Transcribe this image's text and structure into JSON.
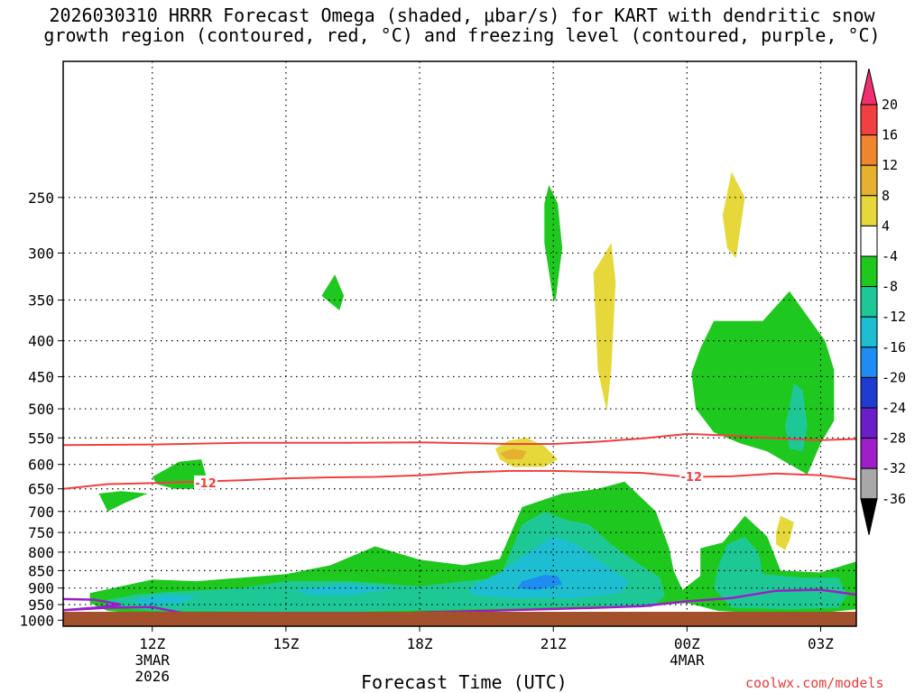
{
  "title": {
    "line1": "2026030310 HRRR Forecast Omega (shaded, μbar/s) for KART with dendritic snow",
    "line2": "growth region (contoured, red, °C) and freezing level (contoured, purple, °C)"
  },
  "xlabel": "Forecast Time (UTC)",
  "credit": "coolwx.com/models",
  "chart_data": {
    "type": "heatmap",
    "title": "2026030310 HRRR Forecast Omega (shaded, μbar/s) for KART with dendritic snow growth region (contoured, red, °C) and freezing level (contoured, purple, °C)",
    "xlabel": "Forecast Time (UTC)",
    "ylabel": "",
    "x_range_hours": [
      10,
      27.8
    ],
    "y_range_hpa": [
      1020,
      160
    ],
    "y_ticks": [
      250,
      300,
      350,
      400,
      450,
      500,
      550,
      600,
      650,
      700,
      750,
      800,
      850,
      900,
      950,
      1000
    ],
    "x_ticks": [
      {
        "hour": 12,
        "label": "12Z",
        "sub1": "3MAR",
        "sub2": "2026"
      },
      {
        "hour": 15,
        "label": "15Z",
        "sub1": "",
        "sub2": ""
      },
      {
        "hour": 18,
        "label": "18Z",
        "sub1": "",
        "sub2": ""
      },
      {
        "hour": 21,
        "label": "21Z",
        "sub1": "",
        "sub2": ""
      },
      {
        "hour": 24,
        "label": "00Z",
        "sub1": "4MAR",
        "sub2": ""
      },
      {
        "hour": 27,
        "label": "03Z",
        "sub1": "",
        "sub2": ""
      }
    ],
    "grid": true,
    "colorbar": {
      "labels": [
        "20",
        "16",
        "12",
        "8",
        "4",
        "-4",
        "-8",
        "-12",
        "-16",
        "-20",
        "-24",
        "-28",
        "-32",
        "-36"
      ],
      "colors": [
        "#f0306e",
        "#f04040",
        "#f08530",
        "#e6b030",
        "#e6d83a",
        "#ffffff",
        "#1ec81e",
        "#1ec896",
        "#1ebed2",
        "#1e8cf0",
        "#1e3cd2",
        "#6a1ec8",
        "#a01ec8",
        "#a8a8a8",
        "#000000"
      ]
    },
    "contours": {
      "dgz_label": "-12",
      "dgz_color": "#f04040",
      "freezing_color": "#9b1ec8"
    },
    "omega_regions": [
      {
        "level": "-4",
        "color": "#1ec81e",
        "points": [
          [
            10.6,
            915
          ],
          [
            11.3,
            895
          ],
          [
            12,
            875
          ],
          [
            13,
            880
          ],
          [
            14,
            870
          ],
          [
            15,
            860
          ],
          [
            16,
            835
          ],
          [
            17,
            785
          ],
          [
            18,
            820
          ],
          [
            19,
            835
          ],
          [
            19.8,
            818
          ],
          [
            20.3,
            690
          ],
          [
            21.2,
            660
          ],
          [
            22,
            650
          ],
          [
            22.6,
            635
          ],
          [
            23.3,
            700
          ],
          [
            23.6,
            790
          ],
          [
            23.7,
            850
          ],
          [
            23.9,
            905
          ],
          [
            24.3,
            865
          ],
          [
            24.3,
            790
          ],
          [
            24.8,
            775
          ],
          [
            25.3,
            710
          ],
          [
            25.8,
            760
          ],
          [
            26.1,
            850
          ],
          [
            27,
            855
          ],
          [
            27.8,
            825
          ],
          [
            27.8,
            965
          ],
          [
            27.1,
            975
          ],
          [
            26,
            980
          ],
          [
            24.7,
            970
          ],
          [
            24,
            945
          ],
          [
            23,
            955
          ],
          [
            21.5,
            960
          ],
          [
            20,
            965
          ],
          [
            18,
            975
          ],
          [
            17,
            980
          ],
          [
            15,
            985
          ],
          [
            13.5,
            985
          ],
          [
            12,
            982
          ],
          [
            11,
            970
          ],
          [
            10.6,
            945
          ]
        ]
      },
      {
        "level": "-8",
        "color": "#1ec896",
        "points": [
          [
            11,
            935
          ],
          [
            11.6,
            920
          ],
          [
            12.3,
            912
          ],
          [
            14,
            900
          ],
          [
            15,
            880
          ],
          [
            16.5,
            880
          ],
          [
            18,
            895
          ],
          [
            19,
            880
          ],
          [
            19.8,
            870
          ],
          [
            20.3,
            730
          ],
          [
            20.8,
            700
          ],
          [
            21.3,
            720
          ],
          [
            21.8,
            730
          ],
          [
            22.3,
            780
          ],
          [
            22.9,
            830
          ],
          [
            23.4,
            870
          ],
          [
            23.5,
            925
          ],
          [
            23.2,
            958
          ],
          [
            22,
            955
          ],
          [
            20,
            962
          ],
          [
            18,
            968
          ],
          [
            16,
            975
          ],
          [
            14,
            972
          ],
          [
            12,
            970
          ],
          [
            11,
            955
          ]
        ]
      },
      {
        "level": "-8b",
        "color": "#1ec896",
        "points": [
          [
            24.6,
            900
          ],
          [
            24.7,
            840
          ],
          [
            24.9,
            780
          ],
          [
            25.3,
            760
          ],
          [
            25.6,
            800
          ],
          [
            25.7,
            860
          ],
          [
            26.6,
            870
          ],
          [
            27.4,
            870
          ],
          [
            27.6,
            920
          ],
          [
            27.4,
            960
          ],
          [
            26.3,
            965
          ],
          [
            25,
            960
          ]
        ]
      },
      {
        "level": "-12",
        "color": "#1ebed2",
        "points": [
          [
            11.5,
            935
          ],
          [
            12.3,
            920
          ],
          [
            13,
            925
          ],
          [
            12.6,
            948
          ],
          [
            11.8,
            950
          ]
        ]
      },
      {
        "level": "-12b",
        "color": "#1ebed2",
        "points": [
          [
            15.2,
            905
          ],
          [
            16.3,
            888
          ],
          [
            17.5,
            900
          ],
          [
            16.5,
            920
          ],
          [
            15.5,
            920
          ]
        ]
      },
      {
        "level": "-12c",
        "color": "#1ebed2",
        "points": [
          [
            19.1,
            900
          ],
          [
            19.8,
            855
          ],
          [
            20.2,
            820
          ],
          [
            20.7,
            780
          ],
          [
            21,
            760
          ],
          [
            21.5,
            780
          ],
          [
            22,
            820
          ],
          [
            22.4,
            855
          ],
          [
            22.7,
            880
          ],
          [
            22.5,
            915
          ],
          [
            21.5,
            930
          ],
          [
            20,
            930
          ],
          [
            19.2,
            920
          ]
        ]
      },
      {
        "level": "-16",
        "color": "#1e8cf0",
        "points": [
          [
            20.3,
            880
          ],
          [
            20.8,
            862
          ],
          [
            21.1,
            865
          ],
          [
            21.2,
            890
          ],
          [
            20.6,
            905
          ],
          [
            20.2,
            900
          ]
        ]
      },
      {
        "level": "-4",
        "color": "#1ec81e",
        "points": [
          [
            24.6,
            375
          ],
          [
            25.7,
            375
          ],
          [
            26.3,
            340
          ],
          [
            27.1,
            400
          ],
          [
            27.3,
            440
          ],
          [
            27.3,
            520
          ],
          [
            27,
            560
          ],
          [
            26.7,
            620
          ],
          [
            26.2,
            595
          ],
          [
            25.8,
            575
          ],
          [
            25.2,
            560
          ],
          [
            24.6,
            540
          ],
          [
            24.2,
            500
          ],
          [
            24.1,
            445
          ],
          [
            24.3,
            410
          ]
        ]
      },
      {
        "level": "-8",
        "color": "#1ec896",
        "points": [
          [
            26.2,
            530
          ],
          [
            26.4,
            460
          ],
          [
            26.6,
            470
          ],
          [
            26.7,
            530
          ],
          [
            26.6,
            575
          ],
          [
            26.3,
            570
          ]
        ]
      },
      {
        "level": "-4",
        "color": "#1ec81e",
        "points": [
          [
            12,
            625
          ],
          [
            12.6,
            595
          ],
          [
            13.1,
            590
          ],
          [
            13.2,
            620
          ],
          [
            13.1,
            650
          ],
          [
            12.5,
            650
          ],
          [
            12.1,
            640
          ]
        ]
      },
      {
        "level": "-4",
        "color": "#1ec81e",
        "points": [
          [
            10.8,
            660
          ],
          [
            11.3,
            655
          ],
          [
            11.9,
            660
          ],
          [
            11.4,
            680
          ],
          [
            11,
            700
          ]
        ]
      },
      {
        "level": "-4",
        "color": "#1ec81e",
        "points": [
          [
            16.2,
            362
          ],
          [
            15.8,
            345
          ],
          [
            16.1,
            322
          ],
          [
            16.3,
            345
          ]
        ]
      },
      {
        "level": "-4",
        "color": "#1ec81e",
        "points": [
          [
            21,
            350
          ],
          [
            20.8,
            290
          ],
          [
            20.8,
            255
          ],
          [
            20.9,
            240
          ],
          [
            21.1,
            255
          ],
          [
            21.2,
            295
          ],
          [
            21.05,
            350
          ]
        ]
      },
      {
        "level": "4",
        "color": "#e6d83a",
        "points": [
          [
            19.7,
            570
          ],
          [
            20,
            555
          ],
          [
            20.4,
            550
          ],
          [
            20.8,
            565
          ],
          [
            21.1,
            590
          ],
          [
            20.8,
            605
          ],
          [
            20.1,
            605
          ],
          [
            19.8,
            590
          ]
        ]
      },
      {
        "level": "8",
        "color": "#e6b030",
        "points": [
          [
            19.8,
            578
          ],
          [
            20.1,
            570
          ],
          [
            20.4,
            575
          ],
          [
            20.3,
            590
          ],
          [
            19.95,
            590
          ]
        ]
      },
      {
        "level": "4",
        "color": "#e6d83a",
        "points": [
          [
            22.1,
            305
          ],
          [
            22.3,
            290
          ],
          [
            22.4,
            330
          ],
          [
            22.3,
            440
          ],
          [
            22.2,
            505
          ],
          [
            22.0,
            440
          ],
          [
            21.9,
            320
          ]
        ]
      },
      {
        "level": "4",
        "color": "#e6d83a",
        "points": [
          [
            24.8,
            265
          ],
          [
            25.0,
            230
          ],
          [
            25.3,
            250
          ],
          [
            25.1,
            305
          ],
          [
            24.9,
            295
          ]
        ]
      },
      {
        "level": "4",
        "color": "#e6d83a",
        "points": [
          [
            26.0,
            750
          ],
          [
            26.1,
            710
          ],
          [
            26.4,
            725
          ],
          [
            26.3,
            770
          ],
          [
            26.2,
            795
          ],
          [
            26.0,
            780
          ]
        ]
      }
    ],
    "dgz_upper_contour": [
      [
        10,
        563
      ],
      [
        12,
        562
      ],
      [
        14,
        559
      ],
      [
        16,
        559
      ],
      [
        18,
        558
      ],
      [
        20,
        561
      ],
      [
        21,
        561
      ],
      [
        22,
        557
      ],
      [
        23,
        551
      ],
      [
        24,
        543
      ],
      [
        25,
        546
      ],
      [
        26,
        551
      ],
      [
        27,
        554
      ],
      [
        27.8,
        552
      ]
    ],
    "dgz_lower_contour": [
      [
        10,
        650
      ],
      [
        11,
        640
      ],
      [
        12,
        638
      ],
      [
        13,
        635
      ],
      [
        14,
        632
      ],
      [
        15,
        628
      ],
      [
        16,
        626
      ],
      [
        17,
        625
      ],
      [
        18,
        622
      ],
      [
        19,
        616
      ],
      [
        20,
        613
      ],
      [
        21,
        613
      ],
      [
        22,
        615
      ],
      [
        23,
        617
      ],
      [
        24,
        625
      ],
      [
        25,
        624
      ],
      [
        26,
        618
      ],
      [
        27,
        622
      ],
      [
        27.8,
        630
      ]
    ],
    "freezing_contour": [
      [
        10,
        933
      ],
      [
        10.7,
        935
      ],
      [
        11.3,
        950
      ],
      [
        10.7,
        960
      ],
      [
        10,
        968
      ],
      [
        11,
        960
      ],
      [
        12,
        958
      ],
      [
        13.5,
        1000
      ],
      [
        14.5,
        1002
      ],
      [
        15.2,
        997
      ],
      [
        15.4,
        1003
      ],
      [
        14.7,
        1012
      ],
      [
        14.4,
        1015
      ],
      [
        14.8,
        1011
      ],
      [
        16,
        990
      ],
      [
        18,
        975
      ],
      [
        20,
        968
      ],
      [
        22,
        960
      ],
      [
        23,
        955
      ],
      [
        24,
        940
      ],
      [
        25,
        930
      ],
      [
        26,
        908
      ],
      [
        27,
        905
      ],
      [
        27.4,
        912
      ],
      [
        27.8,
        920
      ]
    ]
  }
}
